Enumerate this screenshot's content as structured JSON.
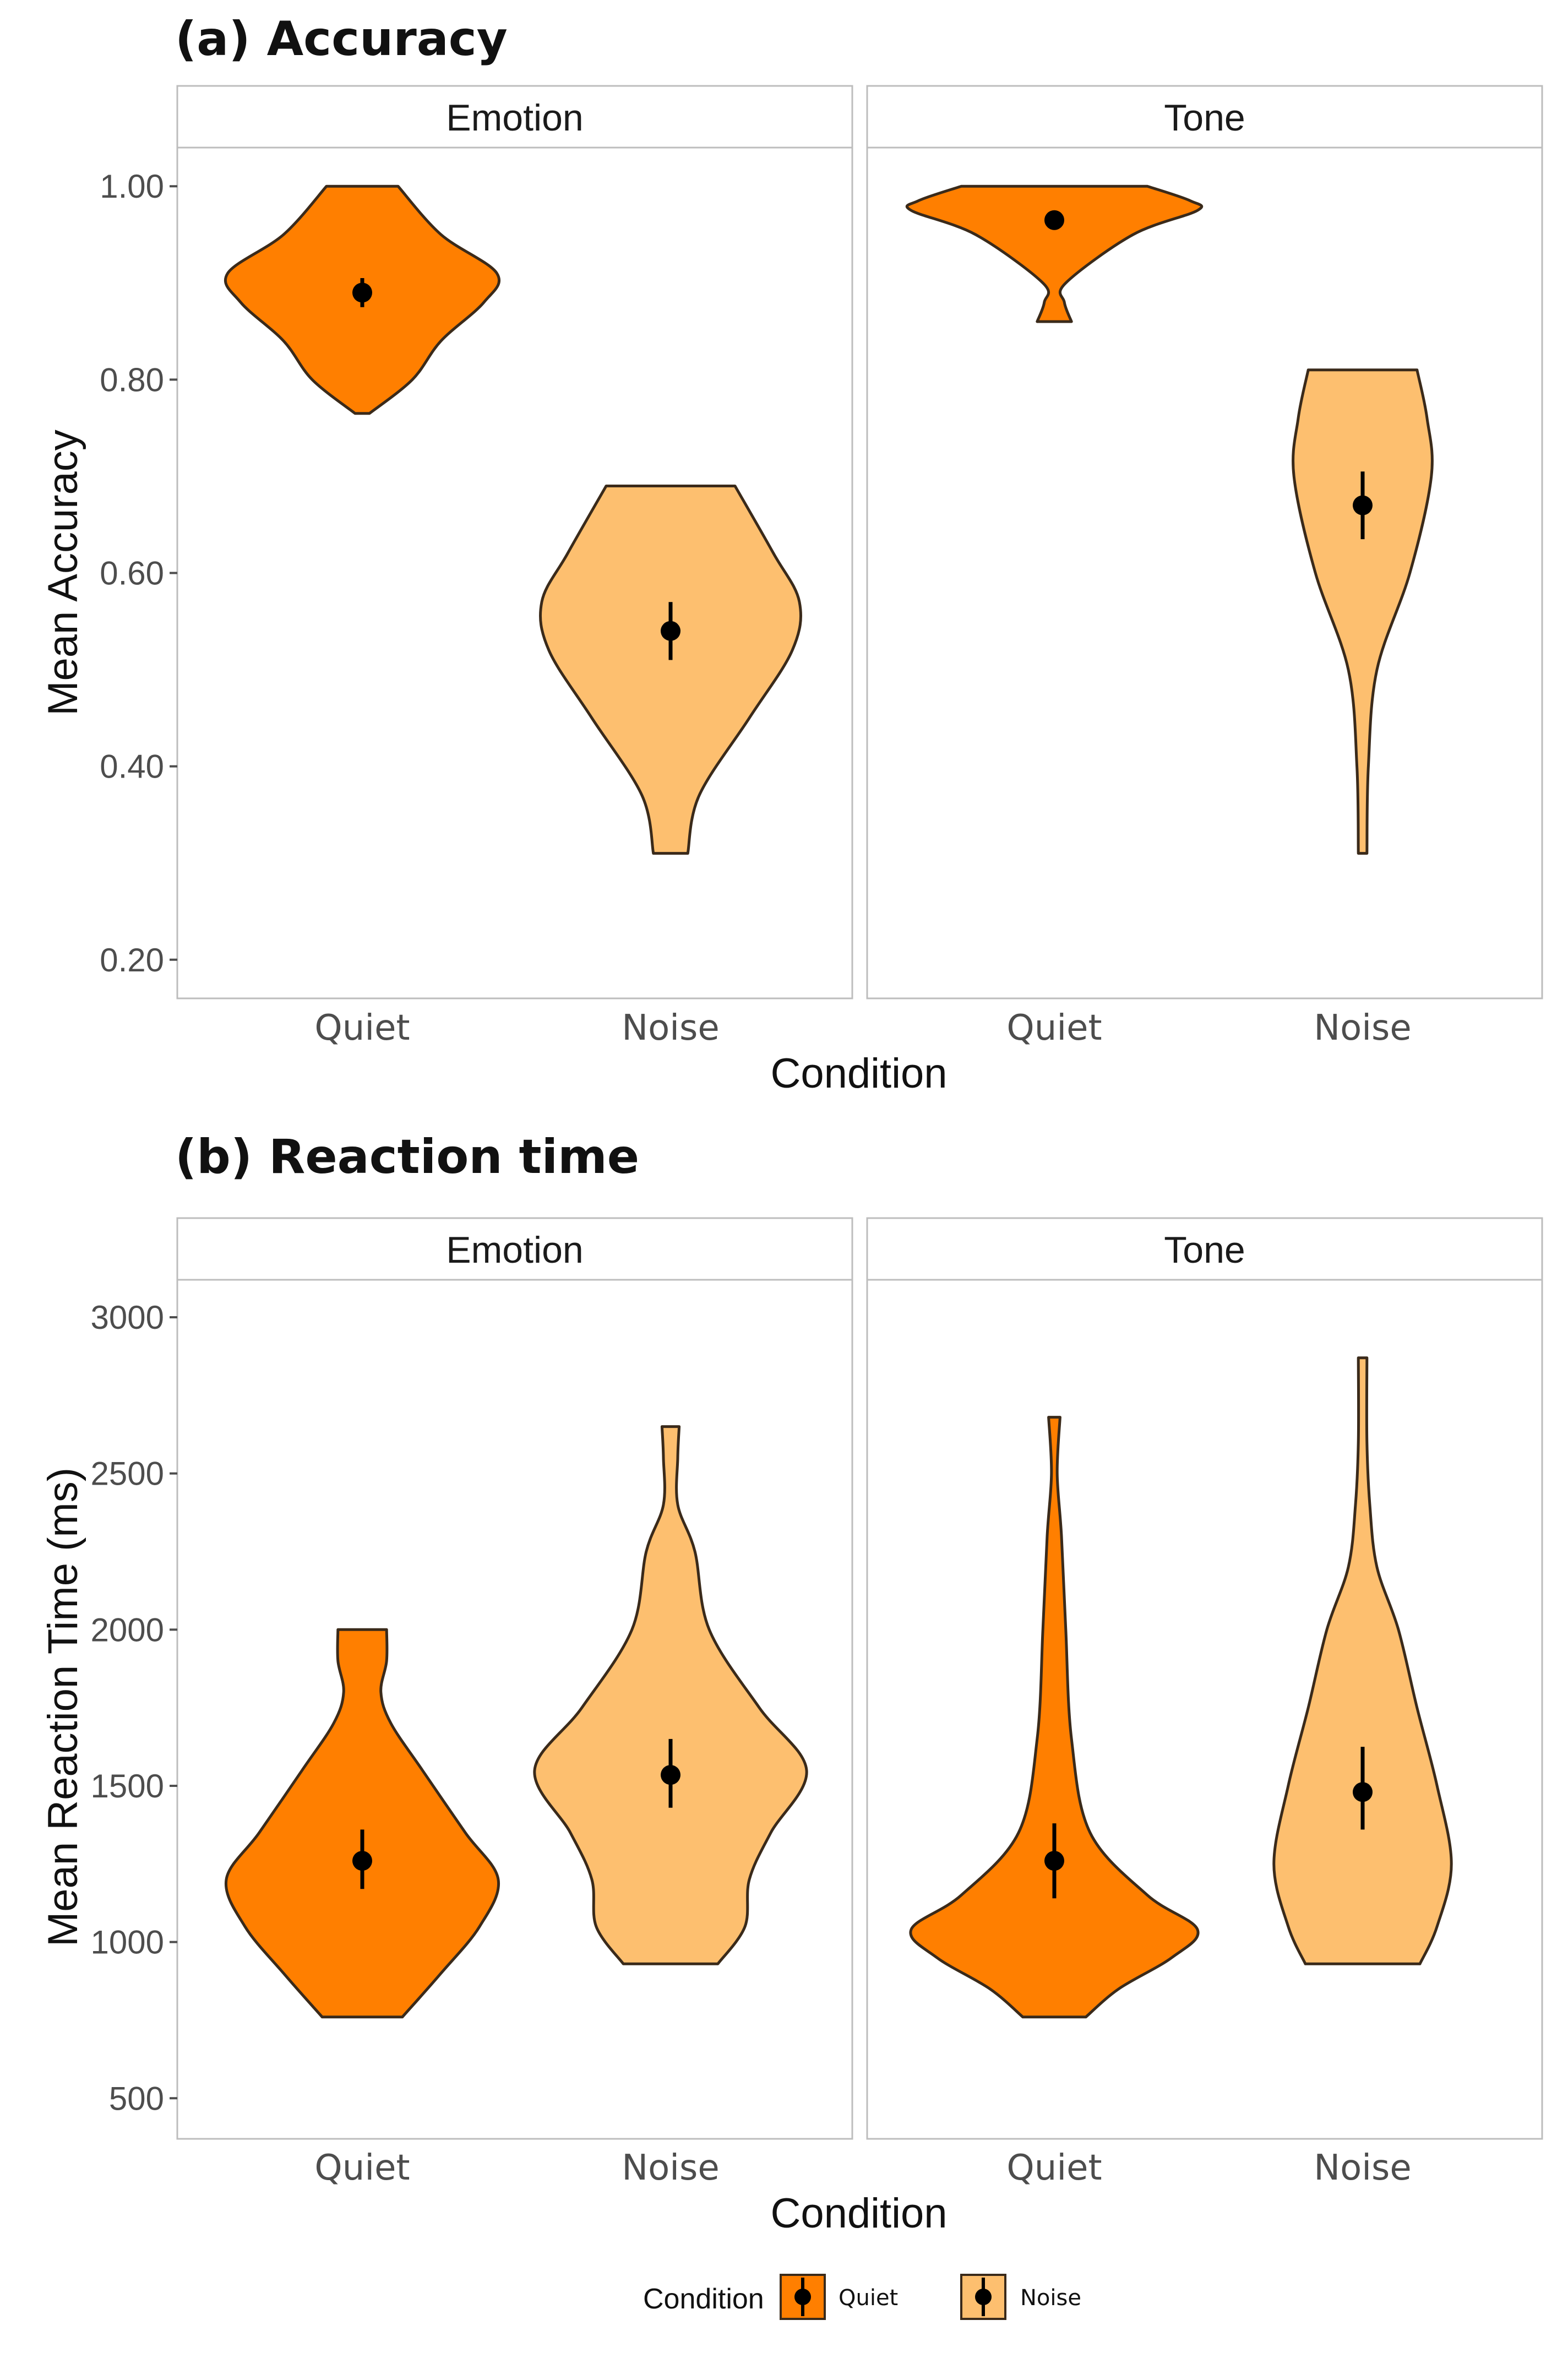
{
  "colors": {
    "quiet": "#FF7F00",
    "noise": "#FDBF6F",
    "outline": "#3a2a1a"
  },
  "legend": {
    "title": "Condition",
    "position": "bottom",
    "entries": [
      "Quiet",
      "Noise"
    ]
  },
  "chart_data": [
    {
      "type": "violin",
      "title": "(a) Accuracy",
      "xlabel": "Condition",
      "ylabel": "Mean Accuracy",
      "ylim": [
        0.16,
        1.04
      ],
      "yticks": [
        0.2,
        0.4,
        0.6,
        0.8,
        1.0
      ],
      "ytick_labels": [
        "0.20",
        "0.40",
        "0.60",
        "0.80",
        "1.00"
      ],
      "facets": [
        {
          "name": "Emotion",
          "categories": [
            "Quiet",
            "Noise"
          ],
          "series": [
            {
              "name": "Quiet",
              "mean": 0.89,
              "ci": [
                0.875,
                0.905
              ],
              "profile": [
                [
                  0.765,
                  0.05
                ],
                [
                  0.8,
                  0.35
                ],
                [
                  0.84,
                  0.55
                ],
                [
                  0.88,
                  0.85
                ],
                [
                  0.91,
                  0.94
                ],
                [
                  0.95,
                  0.55
                ],
                [
                  1.0,
                  0.25
                ]
              ]
            },
            {
              "name": "Noise",
              "mean": 0.54,
              "ci": [
                0.51,
                0.57
              ],
              "profile": [
                [
                  0.31,
                  0.12
                ],
                [
                  0.37,
                  0.2
                ],
                [
                  0.45,
                  0.55
                ],
                [
                  0.52,
                  0.85
                ],
                [
                  0.57,
                  0.9
                ],
                [
                  0.62,
                  0.72
                ],
                [
                  0.69,
                  0.45
                ]
              ]
            }
          ]
        },
        {
          "name": "Tone",
          "categories": [
            "Quiet",
            "Noise"
          ],
          "series": [
            {
              "name": "Quiet",
              "mean": 0.965,
              "ci": [
                0.96,
                0.97
              ],
              "profile": [
                [
                  0.86,
                  0.12
                ],
                [
                  0.88,
                  0.07
                ],
                [
                  0.9,
                  0.08
                ],
                [
                  0.95,
                  0.55
                ],
                [
                  0.975,
                  1.0
                ],
                [
                  0.985,
                  0.95
                ],
                [
                  1.0,
                  0.65
                ]
              ]
            },
            {
              "name": "Noise",
              "mean": 0.67,
              "ci": [
                0.635,
                0.705
              ],
              "profile": [
                [
                  0.31,
                  0.03
                ],
                [
                  0.4,
                  0.04
                ],
                [
                  0.5,
                  0.1
                ],
                [
                  0.6,
                  0.33
                ],
                [
                  0.7,
                  0.48
                ],
                [
                  0.76,
                  0.45
                ],
                [
                  0.81,
                  0.38
                ]
              ]
            }
          ]
        }
      ]
    },
    {
      "type": "violin",
      "title": "(b) Reaction time",
      "xlabel": "Condition",
      "ylabel": "Mean Reaction Time (ms)",
      "ylim": [
        370,
        3120
      ],
      "yticks": [
        500,
        1000,
        1500,
        2000,
        2500,
        3000
      ],
      "ytick_labels": [
        "500",
        "1000",
        "1500",
        "2000",
        "2500",
        "3000"
      ],
      "facets": [
        {
          "name": "Emotion",
          "categories": [
            "Quiet",
            "Noise"
          ],
          "series": [
            {
              "name": "Quiet",
              "mean": 1260,
              "ci": [
                1170,
                1360
              ],
              "profile": [
                [
                  760,
                  0.28
                ],
                [
                  900,
                  0.55
                ],
                [
                  1050,
                  0.82
                ],
                [
                  1200,
                  0.95
                ],
                [
                  1350,
                  0.72
                ],
                [
                  1550,
                  0.42
                ],
                [
                  1700,
                  0.2
                ],
                [
                  1800,
                  0.13
                ],
                [
                  1900,
                  0.17
                ],
                [
                  2000,
                  0.17
                ]
              ]
            },
            {
              "name": "Noise",
              "mean": 1535,
              "ci": [
                1430,
                1650
              ],
              "profile": [
                [
                  930,
                  0.33
                ],
                [
                  1050,
                  0.52
                ],
                [
                  1200,
                  0.55
                ],
                [
                  1350,
                  0.7
                ],
                [
                  1550,
                  0.95
                ],
                [
                  1750,
                  0.62
                ],
                [
                  2000,
                  0.27
                ],
                [
                  2250,
                  0.17
                ],
                [
                  2400,
                  0.05
                ],
                [
                  2550,
                  0.05
                ],
                [
                  2650,
                  0.06
                ]
              ]
            }
          ]
        },
        {
          "name": "Tone",
          "categories": [
            "Quiet",
            "Noise"
          ],
          "series": [
            {
              "name": "Quiet",
              "mean": 1260,
              "ci": [
                1140,
                1380
              ],
              "profile": [
                [
                  760,
                  0.22
                ],
                [
                  850,
                  0.45
                ],
                [
                  950,
                  0.82
                ],
                [
                  1040,
                  1.0
                ],
                [
                  1150,
                  0.65
                ],
                [
                  1350,
                  0.25
                ],
                [
                  1650,
                  0.12
                ],
                [
                  2000,
                  0.08
                ],
                [
                  2300,
                  0.05
                ],
                [
                  2500,
                  0.02
                ],
                [
                  2680,
                  0.04
                ]
              ]
            },
            {
              "name": "Noise",
              "mean": 1480,
              "ci": [
                1360,
                1625
              ],
              "profile": [
                [
                  930,
                  0.4
                ],
                [
                  1050,
                  0.52
                ],
                [
                  1250,
                  0.62
                ],
                [
                  1500,
                  0.52
                ],
                [
                  1750,
                  0.38
                ],
                [
                  2000,
                  0.25
                ],
                [
                  2200,
                  0.1
                ],
                [
                  2400,
                  0.05
                ],
                [
                  2600,
                  0.03
                ],
                [
                  2870,
                  0.03
                ]
              ]
            }
          ]
        }
      ]
    }
  ]
}
